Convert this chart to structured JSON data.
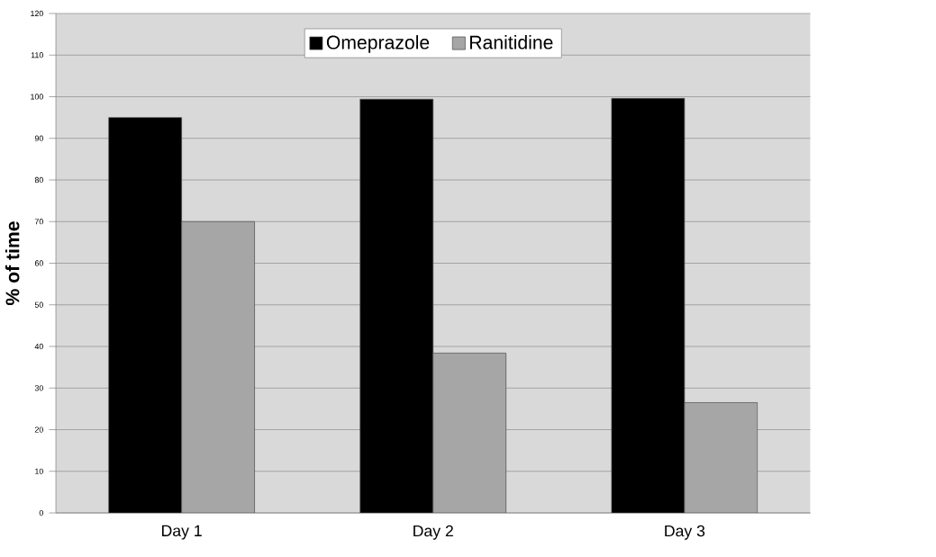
{
  "chart_data": {
    "type": "bar",
    "ylabel": "% of time",
    "categories": [
      "Day 1",
      "Day 2",
      "Day 3"
    ],
    "series": [
      {
        "name": "Omeprazole",
        "color": "#000000",
        "values": [
          95,
          99.4,
          99.6
        ]
      },
      {
        "name": "Ranitidine",
        "color": "#a6a6a6",
        "values": [
          70,
          38.4,
          26.5
        ]
      }
    ],
    "ylim": [
      0,
      120
    ],
    "yticks": [
      0,
      10,
      20,
      30,
      40,
      50,
      60,
      70,
      80,
      90,
      100,
      110,
      120
    ],
    "grid": "y",
    "legend": "top"
  }
}
